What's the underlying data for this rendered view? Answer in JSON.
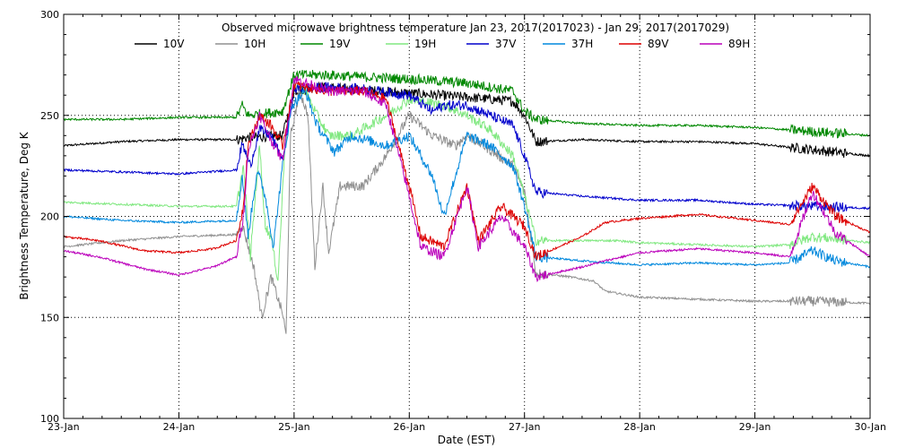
{
  "chart_data": {
    "type": "line",
    "title": "Observed microwave brightness temperature Jan 23, 2017(2017023) - Jan 29, 2017(2017029)",
    "xlabel": "Date (EST)",
    "ylabel": "Brightness Temperature, Deg K",
    "x_range_days": [
      0,
      7
    ],
    "ylim": [
      100,
      300
    ],
    "yticks": [
      100,
      150,
      200,
      250,
      300
    ],
    "x_tick_labels": [
      "23-Jan",
      "24-Jan",
      "25-Jan",
      "26-Jan",
      "27-Jan",
      "28-Jan",
      "29-Jan",
      "30-Jan"
    ],
    "grid": true,
    "legend_position": "top",
    "series": [
      {
        "name": "10V",
        "color": "#000000",
        "points": [
          [
            0,
            235
          ],
          [
            0.5,
            237
          ],
          [
            1,
            238
          ],
          [
            1.5,
            238
          ],
          [
            1.6,
            239
          ],
          [
            1.9,
            240
          ],
          [
            2.0,
            262
          ],
          [
            2.2,
            264
          ],
          [
            2.5,
            263
          ],
          [
            3.0,
            261
          ],
          [
            3.5,
            259
          ],
          [
            3.9,
            257
          ],
          [
            4.0,
            250
          ],
          [
            4.1,
            237
          ],
          [
            4.5,
            238
          ],
          [
            5.0,
            237
          ],
          [
            5.5,
            237
          ],
          [
            6.0,
            236
          ],
          [
            6.5,
            233
          ],
          [
            7.0,
            230
          ]
        ]
      },
      {
        "name": "10H",
        "color": "#909090",
        "points": [
          [
            0,
            185
          ],
          [
            0.5,
            188
          ],
          [
            1,
            190
          ],
          [
            1.5,
            191
          ],
          [
            1.55,
            196
          ],
          [
            1.65,
            175
          ],
          [
            1.72,
            150
          ],
          [
            1.8,
            170
          ],
          [
            1.9,
            152
          ],
          [
            1.93,
            141
          ],
          [
            1.97,
            240
          ],
          [
            2.05,
            262
          ],
          [
            2.12,
            250
          ],
          [
            2.18,
            175
          ],
          [
            2.25,
            215
          ],
          [
            2.3,
            182
          ],
          [
            2.4,
            215
          ],
          [
            2.6,
            215
          ],
          [
            2.8,
            230
          ],
          [
            3.0,
            250
          ],
          [
            3.2,
            240
          ],
          [
            3.4,
            235
          ],
          [
            3.5,
            240
          ],
          [
            3.7,
            233
          ],
          [
            3.9,
            225
          ],
          [
            4.0,
            212
          ],
          [
            4.1,
            172
          ],
          [
            4.4,
            170
          ],
          [
            4.6,
            168
          ],
          [
            4.7,
            163
          ],
          [
            5.0,
            160
          ],
          [
            5.5,
            159
          ],
          [
            6.0,
            158
          ],
          [
            6.5,
            158
          ],
          [
            7.0,
            157
          ]
        ]
      },
      {
        "name": "19V",
        "color": "#008800",
        "points": [
          [
            0,
            248
          ],
          [
            0.5,
            248
          ],
          [
            1,
            249
          ],
          [
            1.5,
            249
          ],
          [
            1.55,
            255
          ],
          [
            1.6,
            250
          ],
          [
            1.9,
            252
          ],
          [
            2.0,
            270
          ],
          [
            2.3,
            270
          ],
          [
            2.6,
            269
          ],
          [
            3.0,
            268
          ],
          [
            3.5,
            266
          ],
          [
            3.9,
            262
          ],
          [
            4.0,
            252
          ],
          [
            4.1,
            248
          ],
          [
            4.5,
            246
          ],
          [
            5.0,
            245
          ],
          [
            5.5,
            245
          ],
          [
            6.0,
            244
          ],
          [
            6.5,
            242
          ],
          [
            7.0,
            240
          ]
        ]
      },
      {
        "name": "19H",
        "color": "#80e880",
        "points": [
          [
            0,
            207
          ],
          [
            0.5,
            206
          ],
          [
            1,
            205
          ],
          [
            1.5,
            205
          ],
          [
            1.56,
            225
          ],
          [
            1.62,
            180
          ],
          [
            1.7,
            235
          ],
          [
            1.75,
            195
          ],
          [
            1.8,
            190
          ],
          [
            1.86,
            168
          ],
          [
            1.92,
            235
          ],
          [
            2.0,
            265
          ],
          [
            2.1,
            262
          ],
          [
            2.2,
            250
          ],
          [
            2.3,
            240
          ],
          [
            2.5,
            240
          ],
          [
            2.8,
            250
          ],
          [
            3.0,
            258
          ],
          [
            3.3,
            255
          ],
          [
            3.5,
            250
          ],
          [
            3.7,
            243
          ],
          [
            3.9,
            230
          ],
          [
            4.0,
            210
          ],
          [
            4.1,
            188
          ],
          [
            4.5,
            188
          ],
          [
            4.8,
            188
          ],
          [
            5.0,
            187
          ],
          [
            5.5,
            186
          ],
          [
            6.0,
            185
          ],
          [
            6.3,
            186
          ],
          [
            6.5,
            190
          ],
          [
            7.0,
            187
          ]
        ]
      },
      {
        "name": "37V",
        "color": "#0000cc",
        "points": [
          [
            0,
            223
          ],
          [
            0.5,
            222
          ],
          [
            1,
            221
          ],
          [
            1.5,
            223
          ],
          [
            1.55,
            236
          ],
          [
            1.62,
            225
          ],
          [
            1.7,
            243
          ],
          [
            1.8,
            240
          ],
          [
            1.9,
            228
          ],
          [
            2.0,
            263
          ],
          [
            2.3,
            264
          ],
          [
            2.6,
            263
          ],
          [
            3.0,
            260
          ],
          [
            3.2,
            252
          ],
          [
            3.3,
            255
          ],
          [
            3.5,
            255
          ],
          [
            3.9,
            245
          ],
          [
            4.0,
            230
          ],
          [
            4.1,
            212
          ],
          [
            4.5,
            210
          ],
          [
            5.0,
            208
          ],
          [
            5.5,
            208
          ],
          [
            6.0,
            206
          ],
          [
            6.5,
            205
          ],
          [
            7.0,
            204
          ]
        ]
      },
      {
        "name": "37H",
        "color": "#0088dd",
        "points": [
          [
            0,
            200
          ],
          [
            0.5,
            198
          ],
          [
            1,
            197
          ],
          [
            1.5,
            198
          ],
          [
            1.55,
            220
          ],
          [
            1.6,
            190
          ],
          [
            1.68,
            223
          ],
          [
            1.75,
            210
          ],
          [
            1.82,
            185
          ],
          [
            1.9,
            225
          ],
          [
            1.98,
            255
          ],
          [
            2.1,
            262
          ],
          [
            2.2,
            245
          ],
          [
            2.35,
            232
          ],
          [
            2.5,
            240
          ],
          [
            2.8,
            235
          ],
          [
            3.0,
            240
          ],
          [
            3.2,
            220
          ],
          [
            3.3,
            200
          ],
          [
            3.5,
            240
          ],
          [
            3.7,
            235
          ],
          [
            3.9,
            225
          ],
          [
            4.0,
            205
          ],
          [
            4.1,
            180
          ],
          [
            4.5,
            178
          ],
          [
            5.0,
            176
          ],
          [
            5.5,
            177
          ],
          [
            6.0,
            176
          ],
          [
            6.3,
            177
          ],
          [
            6.5,
            183
          ],
          [
            6.7,
            178
          ],
          [
            7.0,
            175
          ]
        ]
      },
      {
        "name": "89V",
        "color": "#dd0000",
        "points": [
          [
            0,
            190
          ],
          [
            0.3,
            188
          ],
          [
            0.7,
            183
          ],
          [
            1,
            182
          ],
          [
            1.3,
            184
          ],
          [
            1.5,
            188
          ],
          [
            1.56,
            205
          ],
          [
            1.6,
            235
          ],
          [
            1.7,
            250
          ],
          [
            1.8,
            245
          ],
          [
            1.9,
            235
          ],
          [
            2.0,
            265
          ],
          [
            2.3,
            262
          ],
          [
            2.6,
            262
          ],
          [
            2.8,
            258
          ],
          [
            3.0,
            215
          ],
          [
            3.1,
            190
          ],
          [
            3.3,
            185
          ],
          [
            3.5,
            215
          ],
          [
            3.6,
            188
          ],
          [
            3.8,
            205
          ],
          [
            4.0,
            195
          ],
          [
            4.1,
            180
          ],
          [
            4.5,
            190
          ],
          [
            4.7,
            197
          ],
          [
            5.0,
            199
          ],
          [
            5.5,
            201
          ],
          [
            6.0,
            198
          ],
          [
            6.3,
            196
          ],
          [
            6.5,
            215
          ],
          [
            6.7,
            200
          ],
          [
            7.0,
            192
          ]
        ]
      },
      {
        "name": "89H",
        "color": "#bb00bb",
        "points": [
          [
            0,
            183
          ],
          [
            0.3,
            180
          ],
          [
            0.7,
            174
          ],
          [
            1,
            171
          ],
          [
            1.3,
            175
          ],
          [
            1.5,
            180
          ],
          [
            1.56,
            200
          ],
          [
            1.6,
            232
          ],
          [
            1.7,
            250
          ],
          [
            1.8,
            238
          ],
          [
            1.9,
            228
          ],
          [
            2.0,
            268
          ],
          [
            2.3,
            262
          ],
          [
            2.6,
            262
          ],
          [
            2.8,
            255
          ],
          [
            3.0,
            210
          ],
          [
            3.1,
            185
          ],
          [
            3.3,
            180
          ],
          [
            3.5,
            215
          ],
          [
            3.6,
            185
          ],
          [
            3.8,
            200
          ],
          [
            4.0,
            185
          ],
          [
            4.1,
            170
          ],
          [
            4.5,
            175
          ],
          [
            4.7,
            178
          ],
          [
            5.0,
            182
          ],
          [
            5.5,
            184
          ],
          [
            6.0,
            182
          ],
          [
            6.3,
            180
          ],
          [
            6.5,
            212
          ],
          [
            6.7,
            192
          ],
          [
            7.0,
            180
          ]
        ]
      }
    ]
  }
}
